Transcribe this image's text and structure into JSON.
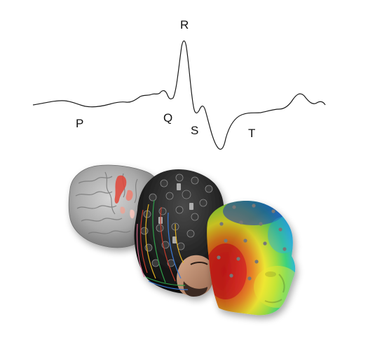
{
  "waveform": {
    "labels": {
      "p": "P",
      "q": "Q",
      "r": "R",
      "s": "S",
      "t": "T"
    },
    "stroke_color": "#1a1a1a"
  },
  "illustrations": {
    "brain": {
      "icon": "brain-surface-render",
      "base_color": "#9a9a9a",
      "activation_color": "#e0463a"
    },
    "eeg_cap": {
      "icon": "eeg-electrode-cap-photo",
      "cap_color": "#1e1e1e",
      "wire_colors": [
        "#c43a2a",
        "#3a7ad6",
        "#2f9e4a",
        "#e0b020"
      ]
    },
    "head_map": {
      "icon": "scalp-potential-head-map",
      "colormap": [
        "#1f3fd8",
        "#27b6e6",
        "#33d47a",
        "#f2ea2a",
        "#f28a1f",
        "#e11c1c"
      ],
      "electrode_color": "#777777"
    }
  }
}
